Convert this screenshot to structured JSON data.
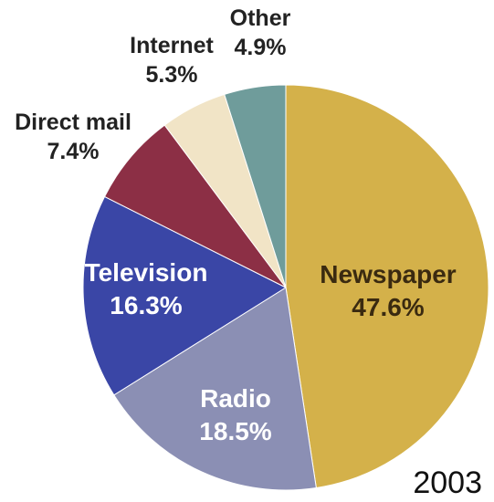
{
  "chart_data": {
    "type": "pie",
    "title": "",
    "annotation": "2003",
    "slices": [
      {
        "label": "Newspaper",
        "value": 47.6,
        "value_text": "47.6%",
        "color": "#d4b14a"
      },
      {
        "label": "Radio",
        "value": 18.5,
        "value_text": "18.5%",
        "color": "#8b8fb4"
      },
      {
        "label": "Television",
        "value": 16.3,
        "value_text": "16.3%",
        "color": "#3a46a6"
      },
      {
        "label": "Direct mail",
        "value": 7.4,
        "value_text": "7.4%",
        "color": "#8c2f45"
      },
      {
        "label": "Internet",
        "value": 5.3,
        "value_text": "5.3%",
        "color": "#f1e4c6"
      },
      {
        "label": "Other",
        "value": 4.9,
        "value_text": "4.9%",
        "color": "#6f9c9b"
      }
    ]
  }
}
